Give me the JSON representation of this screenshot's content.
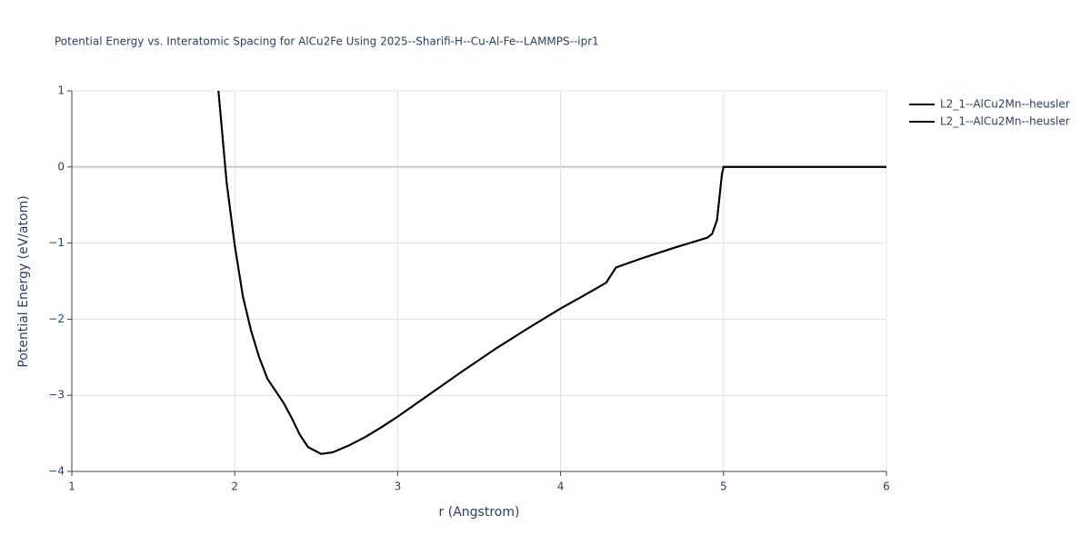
{
  "chart_data": {
    "type": "line",
    "title": "Potential Energy vs. Interatomic Spacing for AlCu2Fe Using 2025--Sharifi-H--Cu-Al-Fe--LAMMPS--ipr1",
    "x_label": "r (Angstrom)",
    "y_label": "Potential Energy (eV/atom)",
    "xlim": [
      1,
      6
    ],
    "xticks": [
      1,
      2,
      3,
      4,
      5,
      6
    ],
    "ylim": [
      -4,
      1
    ],
    "yticks": [
      {
        "value": -4,
        "label": "−4"
      },
      {
        "value": -3,
        "label": "−3"
      },
      {
        "value": -2,
        "label": "−2"
      },
      {
        "value": -1,
        "label": "−1"
      },
      0,
      1
    ],
    "grid": true,
    "legend": "top-right",
    "series": [
      {
        "name": "L2_1--AlCu2Mn--heusler",
        "color": "#000000",
        "x": [
          1.9,
          1.95,
          2.0,
          2.05,
          2.1,
          2.15,
          2.2,
          2.3,
          2.35,
          2.4,
          2.45,
          2.53,
          2.6,
          2.7,
          2.8,
          2.9,
          3.0,
          3.2,
          3.4,
          3.6,
          3.8,
          4.0,
          4.2,
          4.28,
          4.31,
          4.34,
          4.5,
          4.7,
          4.9,
          4.93,
          4.96,
          4.99,
          5.0,
          6.0
        ],
        "values": [
          1,
          -0.2,
          -1.03,
          -1.7,
          -2.15,
          -2.5,
          -2.78,
          -3.1,
          -3.3,
          -3.52,
          -3.68,
          -3.77,
          -3.75,
          -3.66,
          -3.55,
          -3.42,
          -3.28,
          -2.98,
          -2.68,
          -2.39,
          -2.12,
          -1.86,
          -1.62,
          -1.52,
          -1.42,
          -1.32,
          -1.2,
          -1.06,
          -0.93,
          -0.88,
          -0.7,
          -0.1,
          0,
          0
        ]
      },
      {
        "name": "L2_1--AlCu2Mn--heusler",
        "color": "#000000",
        "x": [
          1.9,
          1.95,
          2.0,
          2.05,
          2.1,
          2.15,
          2.2,
          2.3,
          2.35,
          2.4,
          2.45,
          2.53,
          2.6,
          2.7,
          2.8,
          2.9,
          3.0,
          3.2,
          3.4,
          3.6,
          3.8,
          4.0,
          4.2,
          4.28,
          4.31,
          4.34,
          4.5,
          4.7,
          4.9,
          4.93,
          4.96,
          4.99,
          5.0,
          6.0
        ],
        "values": [
          1,
          -0.2,
          -1.03,
          -1.7,
          -2.15,
          -2.5,
          -2.78,
          -3.1,
          -3.3,
          -3.52,
          -3.68,
          -3.77,
          -3.75,
          -3.66,
          -3.55,
          -3.42,
          -3.28,
          -2.98,
          -2.68,
          -2.39,
          -2.12,
          -1.86,
          -1.62,
          -1.52,
          -1.42,
          -1.32,
          -1.2,
          -1.06,
          -0.93,
          -0.88,
          -0.7,
          -0.1,
          0,
          0
        ]
      }
    ]
  }
}
